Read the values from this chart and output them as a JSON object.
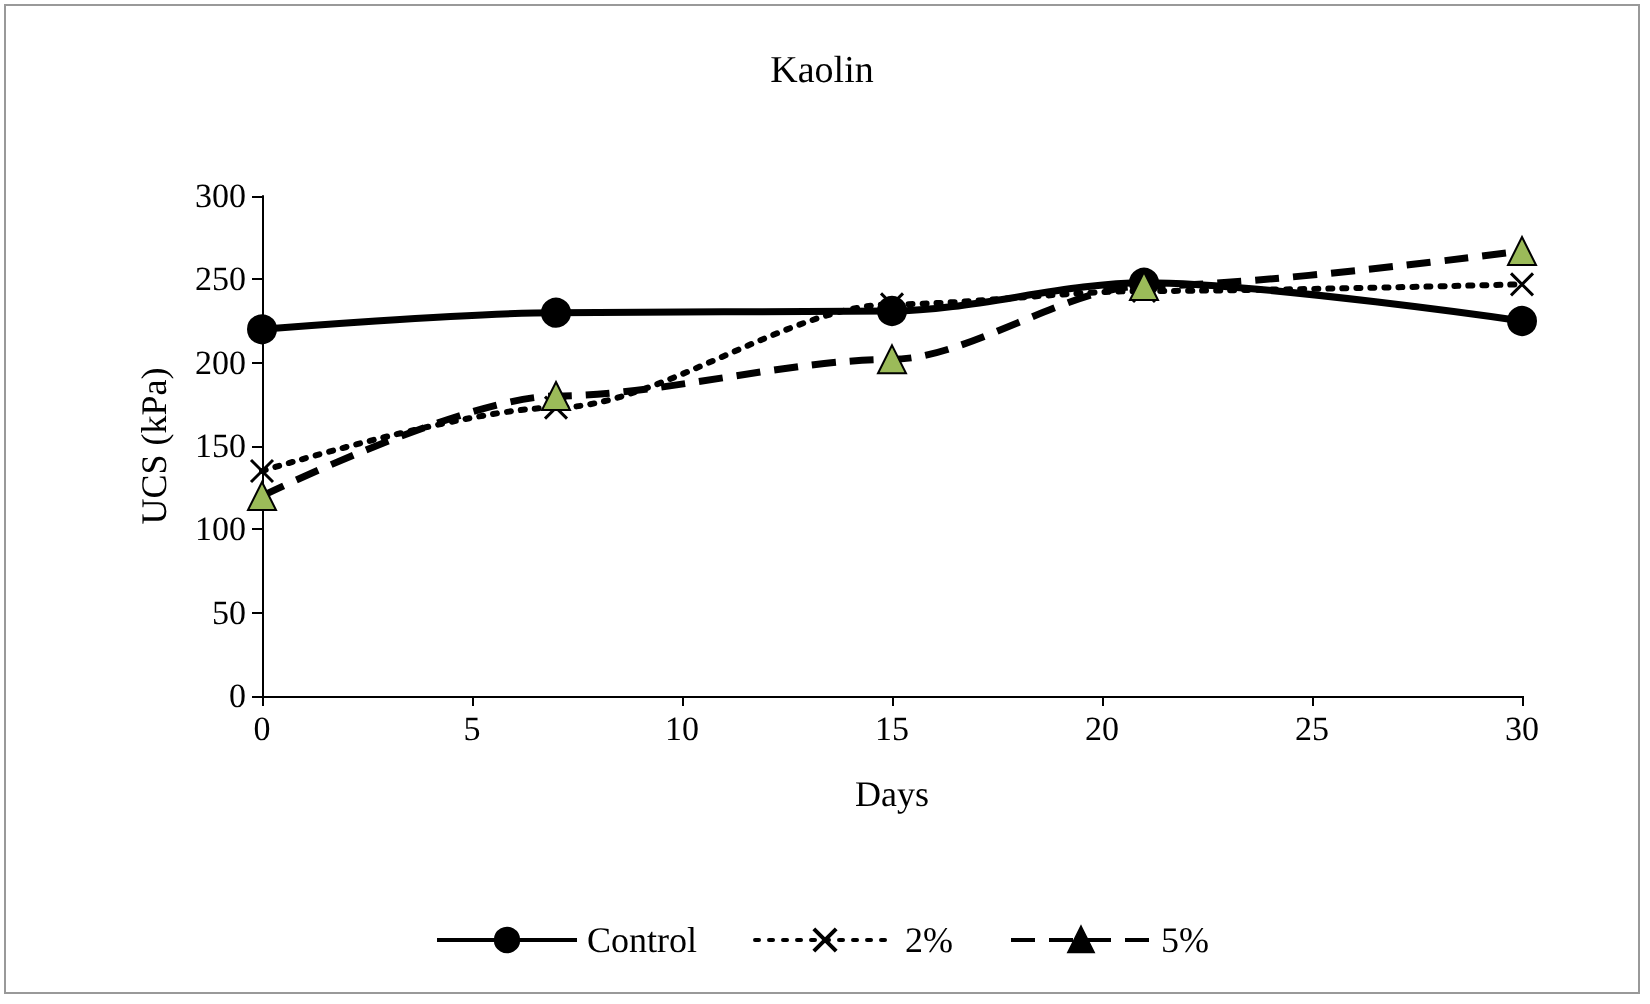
{
  "chart_data": {
    "type": "line",
    "title": "Kaolin",
    "xlabel": "Days",
    "ylabel": "UCS (kPa)",
    "x": [
      0,
      7,
      15,
      21,
      30
    ],
    "series": [
      {
        "name": "Control",
        "color": "#000000",
        "marker": "circle",
        "line_style": "solid",
        "values": [
          220,
          230,
          231,
          248,
          225
        ]
      },
      {
        "name": "2%",
        "color": "#000000",
        "marker": "cross",
        "line_style": "dotted",
        "values": [
          135,
          173,
          235,
          243,
          247
        ]
      },
      {
        "name": "5%",
        "color": "#000000",
        "colors": [
          "#9bbb59",
          "#9bbb59",
          "#9bbb59",
          "#9bbb59",
          "#9bbb59"
        ],
        "marker": "triangle",
        "line_style": "dashed",
        "values": [
          120,
          180,
          202,
          246,
          267
        ]
      }
    ],
    "xlim": [
      0,
      30
    ],
    "xticks": [
      0,
      5,
      10,
      15,
      20,
      25,
      30
    ],
    "ylim": [
      0,
      300
    ],
    "yticks": [
      0,
      50,
      100,
      150,
      200,
      250,
      300
    ],
    "grid": false,
    "legend": "bottom"
  }
}
